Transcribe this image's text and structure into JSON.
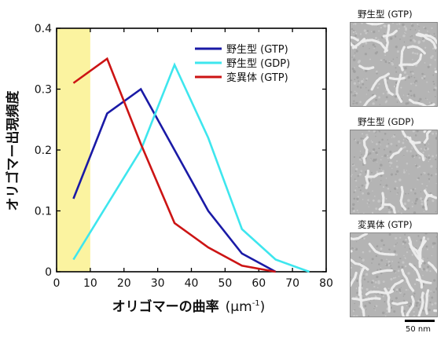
{
  "chart_data": {
    "type": "line",
    "xlabel": "オリゴマーの曲率",
    "xlabel_unit": "(μm",
    "xlabel_unit_exp": "-1",
    "xlabel_unit_close": ")",
    "ylabel": "オリゴマー出現頻度",
    "xlim": [
      0,
      80
    ],
    "ylim": [
      0,
      0.4
    ],
    "x_ticks": [
      "0",
      "10",
      "20",
      "30",
      "40",
      "50",
      "60",
      "70",
      "80"
    ],
    "y_ticks": [
      "0",
      "0.1",
      "0.2",
      "0.3",
      "0.4"
    ],
    "highlight_region": {
      "x_from": 0,
      "x_to": 10,
      "color": "#fbf3a0"
    },
    "legend_position": "top-right",
    "grid": false,
    "series": [
      {
        "name": "野生型 (GTP)",
        "color": "#1a1aa6",
        "x": [
          5,
          15,
          25,
          35,
          45,
          55,
          65
        ],
        "y": [
          0.12,
          0.26,
          0.3,
          0.2,
          0.1,
          0.03,
          0.0
        ]
      },
      {
        "name": "野生型 (GDP)",
        "color": "#3ee6ee",
        "x": [
          5,
          15,
          25,
          35,
          45,
          55,
          65,
          75
        ],
        "y": [
          0.02,
          0.11,
          0.2,
          0.34,
          0.22,
          0.07,
          0.02,
          0.0
        ]
      },
      {
        "name": "変異体 (GTP)",
        "color": "#cc1414",
        "x": [
          5,
          15,
          25,
          35,
          45,
          55,
          65
        ],
        "y": [
          0.31,
          0.35,
          0.21,
          0.08,
          0.04,
          0.01,
          0.0
        ]
      }
    ]
  },
  "micrographs": [
    {
      "label": "野生型 (GTP)"
    },
    {
      "label": "野生型 (GDP)"
    },
    {
      "label": "変異体 (GTP)"
    }
  ],
  "scale_bar": {
    "label": "50 nm"
  }
}
